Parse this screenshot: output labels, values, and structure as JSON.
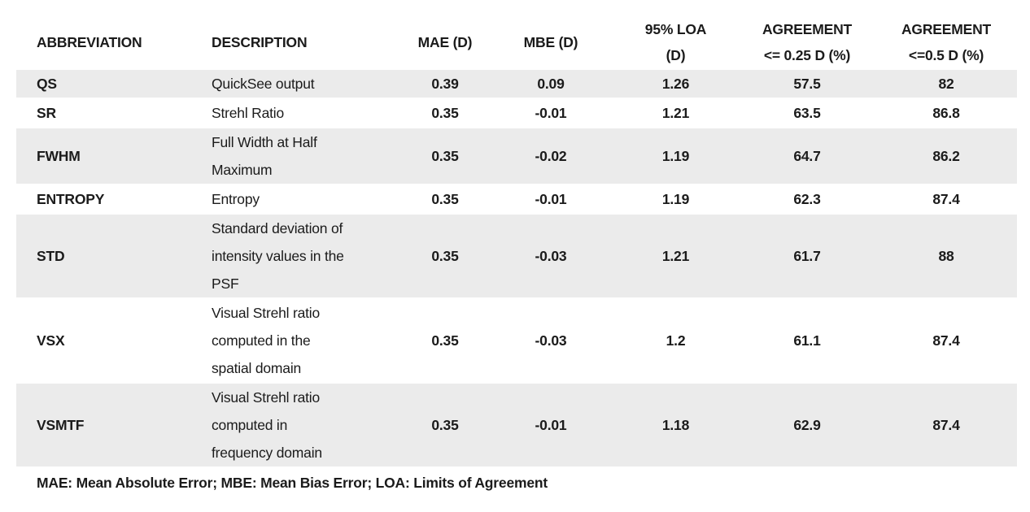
{
  "table": {
    "headers": {
      "abbreviation": "ABBREVIATION",
      "description": "DESCRIPTION",
      "mae": "MAE (D)",
      "mbe": "MBE (D)",
      "loa": "95% LOA\n(D)",
      "agreement_025": "AGREEMENT\n<= 0.25 D (%)",
      "agreement_05": "AGREEMENT\n<=0.5 D (%)"
    },
    "rows": [
      {
        "abbreviation": "QS",
        "description": "QuickSee output",
        "mae": "0.39",
        "mbe": "0.09",
        "loa": "1.26",
        "agreement_025": "57.5",
        "agreement_05": "82"
      },
      {
        "abbreviation": "SR",
        "description": "Strehl Ratio",
        "mae": "0.35",
        "mbe": "-0.01",
        "loa": "1.21",
        "agreement_025": "63.5",
        "agreement_05": "86.8"
      },
      {
        "abbreviation": "FWHM",
        "description": "Full Width at Half\nMaximum",
        "mae": "0.35",
        "mbe": "-0.02",
        "loa": "1.19",
        "agreement_025": "64.7",
        "agreement_05": "86.2"
      },
      {
        "abbreviation": "ENTROPY",
        "description": "Entropy",
        "mae": "0.35",
        "mbe": "-0.01",
        "loa": "1.19",
        "agreement_025": "62.3",
        "agreement_05": "87.4"
      },
      {
        "abbreviation": "STD",
        "description": "Standard deviation of\nintensity values in the\nPSF",
        "mae": "0.35",
        "mbe": "-0.03",
        "loa": "1.21",
        "agreement_025": "61.7",
        "agreement_05": "88"
      },
      {
        "abbreviation": "VSX",
        "description": "Visual Strehl ratio\ncomputed in the\nspatial domain",
        "mae": "0.35",
        "mbe": "-0.03",
        "loa": "1.2",
        "agreement_025": "61.1",
        "agreement_05": "87.4"
      },
      {
        "abbreviation": "VSMTF",
        "description": "Visual Strehl ratio\ncomputed in\nfrequency domain",
        "mae": "0.35",
        "mbe": "-0.01",
        "loa": "1.18",
        "agreement_025": "62.9",
        "agreement_05": "87.4"
      }
    ],
    "footnote": "MAE: Mean Absolute Error; MBE: Mean Bias Error; LOA: Limits of Agreement"
  },
  "colors": {
    "row_shade": "#ebebeb",
    "text": "#1b1b1b",
    "background": "#ffffff"
  }
}
